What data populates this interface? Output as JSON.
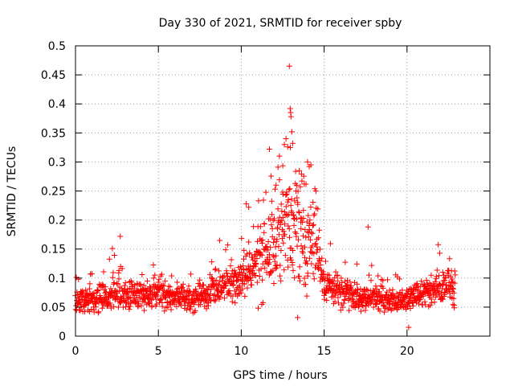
{
  "chart_data": {
    "type": "scatter",
    "title": "Day 330 of 2021, SRMTID for receiver spby",
    "xlabel": "GPS time / hours",
    "ylabel": "SRMTID / TECUs",
    "xlim": [
      0,
      25
    ],
    "ylim": [
      0,
      0.5
    ],
    "xticks": [
      0,
      5,
      10,
      15,
      20
    ],
    "xtick_labels": [
      "0",
      "5",
      "10",
      "15",
      "20"
    ],
    "yticks": [
      0,
      0.05,
      0.1,
      0.15,
      0.2,
      0.25,
      0.3,
      0.35,
      0.4,
      0.45,
      0.5
    ],
    "ytick_labels": [
      "0",
      "0.05",
      "0.1",
      "0.15",
      "0.2",
      "0.25",
      "0.3",
      "0.35",
      "0.4",
      "0.45",
      "0.5"
    ],
    "grid": true,
    "marker": "+",
    "series": [
      {
        "name": "SRMTID",
        "color": "#ff0000",
        "x_range": [
          0,
          22.9
        ],
        "profile": [
          [
            0,
            0.062
          ],
          [
            1,
            0.062
          ],
          [
            2,
            0.07
          ],
          [
            3,
            0.072
          ],
          [
            4,
            0.068
          ],
          [
            5,
            0.075
          ],
          [
            6,
            0.065
          ],
          [
            7,
            0.062
          ],
          [
            8,
            0.075
          ],
          [
            9,
            0.09
          ],
          [
            10,
            0.1
          ],
          [
            10.5,
            0.11
          ],
          [
            11,
            0.13
          ],
          [
            12,
            0.16
          ],
          [
            12.5,
            0.19
          ],
          [
            13,
            0.2
          ],
          [
            13.5,
            0.19
          ],
          [
            14,
            0.17
          ],
          [
            14.5,
            0.15
          ],
          [
            15,
            0.09
          ],
          [
            16,
            0.075
          ],
          [
            17,
            0.068
          ],
          [
            18,
            0.065
          ],
          [
            19,
            0.06
          ],
          [
            20,
            0.062
          ],
          [
            21,
            0.075
          ],
          [
            22,
            0.085
          ],
          [
            22.9,
            0.08
          ]
        ],
        "highlights": [
          [
            12.9,
            0.465
          ],
          [
            12.95,
            0.392
          ],
          [
            12.98,
            0.385
          ],
          [
            13.0,
            0.378
          ],
          [
            13.05,
            0.352
          ],
          [
            12.7,
            0.34
          ],
          [
            12.6,
            0.33
          ],
          [
            12.8,
            0.326
          ],
          [
            13.1,
            0.332
          ],
          [
            11.7,
            0.322
          ],
          [
            12.3,
            0.31
          ],
          [
            14.0,
            0.3
          ],
          [
            13.5,
            0.285
          ],
          [
            14.1,
            0.292
          ],
          [
            14.2,
            0.295
          ],
          [
            13.8,
            0.262
          ],
          [
            12.1,
            0.26
          ],
          [
            12.5,
            0.248
          ],
          [
            17.65,
            0.188
          ],
          [
            10.3,
            0.228
          ],
          [
            10.45,
            0.222
          ],
          [
            2.7,
            0.172
          ],
          [
            13.4,
            0.032
          ],
          [
            20.1,
            0.015
          ]
        ]
      }
    ]
  }
}
